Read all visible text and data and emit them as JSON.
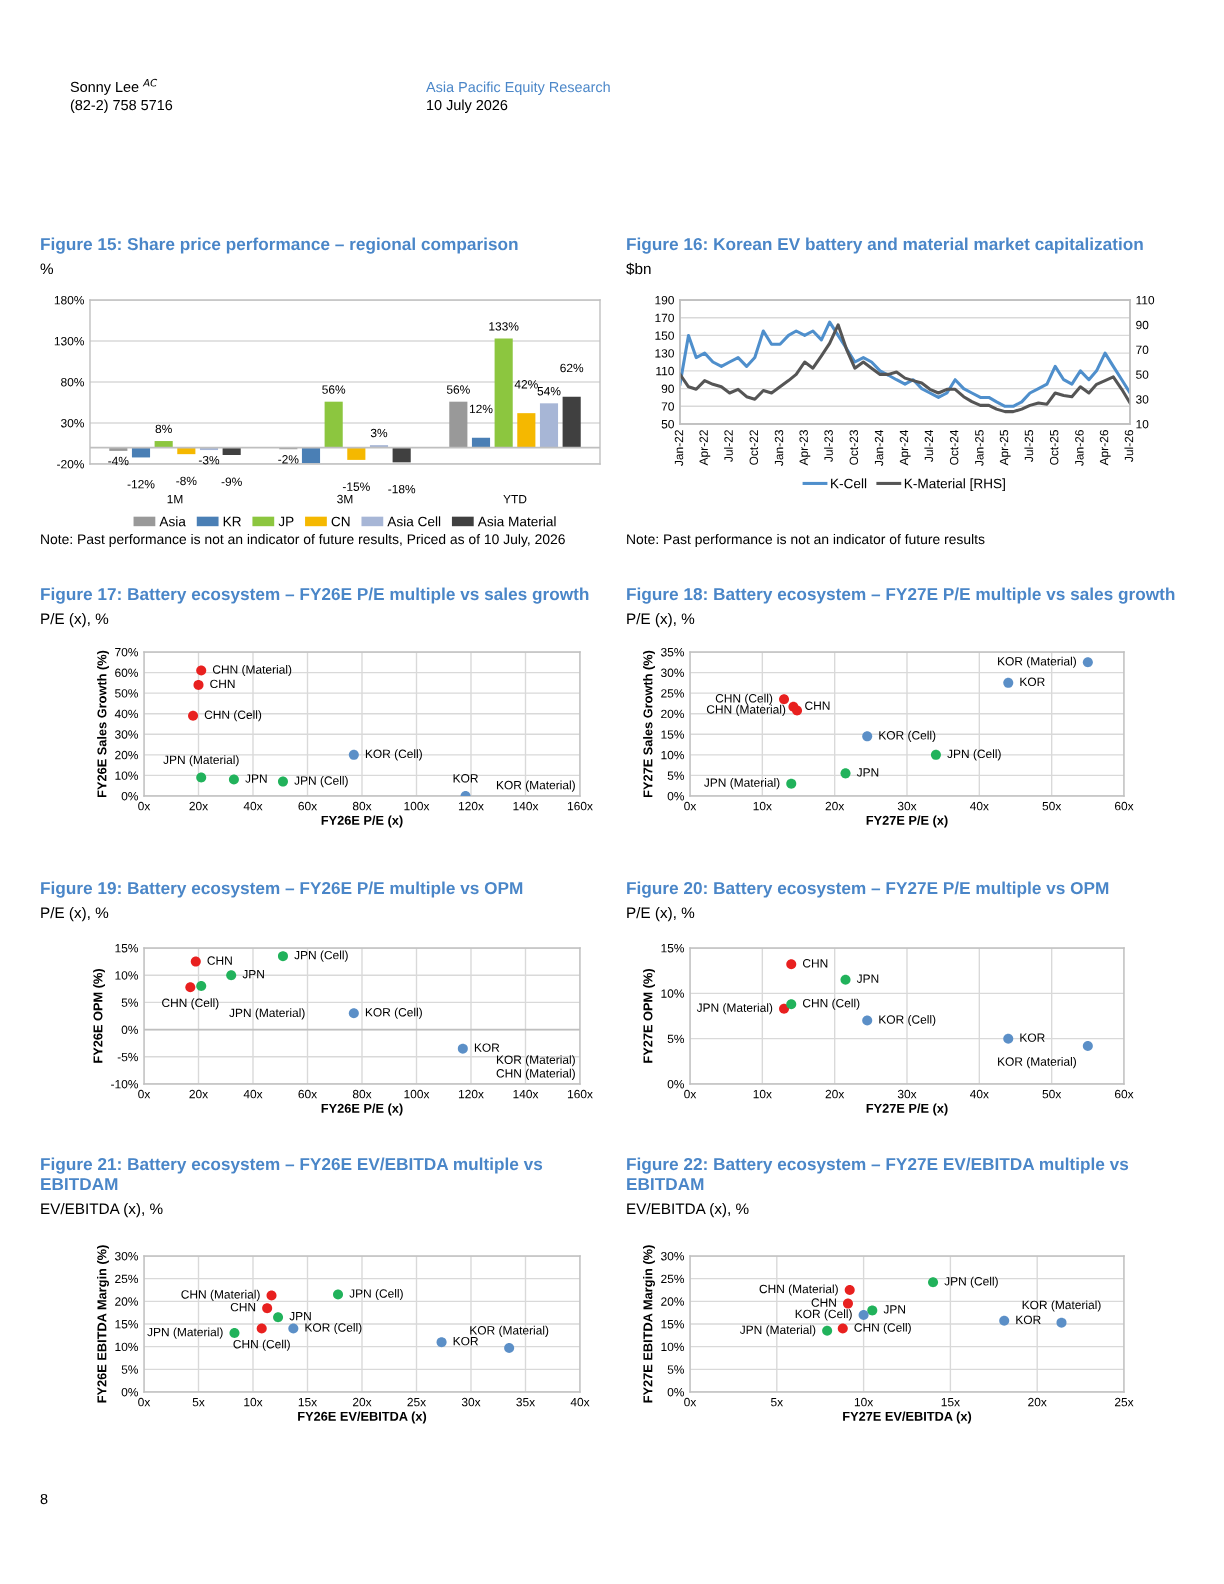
{
  "chart_data": [
    {
      "type": "other",
      "annotations": [
        "Sonny Lee $^{AC}$",
        "(82-2) 758 5716",
        "Asia Pacific Equity Research",
        "10 July 2026",
        "8"
      ]
    },
    {
      "type": "bar",
      "title": "Figure 15: Share price performance – regional comparison",
      "subtitle": "%",
      "categories": [
        "1M",
        "3M",
        "YTD"
      ],
      "series": [
        {
          "name": "Asia",
          "color": "#999999",
          "values": [
            -4,
            -2,
            56
          ],
          "value_labels": [
            "-4%",
            "-2%",
            "56%"
          ]
        },
        {
          "name": "KR",
          "color": "#4a7fb5",
          "values": [
            -12,
            -19,
            12
          ],
          "value_labels": [
            "-12%",
            null,
            "12%"
          ]
        },
        {
          "name": "JP",
          "color": "#8cc63f",
          "values": [
            8,
            56,
            133
          ],
          "value_labels": [
            "8%",
            "56%",
            "133%"
          ]
        },
        {
          "name": "CN",
          "color": "#f5b800",
          "values": [
            -8,
            -15,
            42
          ],
          "value_labels": [
            "-8%",
            "-15%",
            "42%"
          ]
        },
        {
          "name": "Asia Cell",
          "color": "#a7b6d6",
          "values": [
            -3,
            3,
            54
          ],
          "value_labels": [
            "-3%",
            "3%",
            "54%"
          ]
        },
        {
          "name": "Asia Material",
          "color": "#404040",
          "values": [
            -9,
            -18,
            62
          ],
          "value_labels": [
            "-9%",
            "-18%",
            "62%"
          ]
        }
      ],
      "ylim": [
        -20,
        180
      ],
      "yticks": [
        {
          "value": -20,
          "label": "-20%"
        },
        {
          "value": 30,
          "label": "30%"
        },
        {
          "value": 80,
          "label": "80%"
        },
        {
          "value": 130,
          "label": "130%"
        },
        {
          "value": 180,
          "label": "180%"
        }
      ],
      "grid": "y",
      "legend": "bottom",
      "annotations": [
        "Note: Past performance is not an indicator of future results, Priced as of 10 July, 2026"
      ]
    },
    {
      "type": "line",
      "title": "Figure 16: Korean EV battery and material market capitalization",
      "subtitle": "$bn",
      "x": [
        "2022-01",
        "2022-02",
        "2022-03",
        "2022-04",
        "2022-05",
        "2022-06",
        "2022-07",
        "2022-08",
        "2022-09",
        "2022-10",
        "2022-11",
        "2022-12",
        "2023-01",
        "2023-02",
        "2023-03",
        "2023-04",
        "2023-05",
        "2023-06",
        "2023-07",
        "2023-08",
        "2023-09",
        "2023-10",
        "2023-11",
        "2023-12",
        "2024-01",
        "2024-02",
        "2024-03",
        "2024-04",
        "2024-05",
        "2024-06",
        "2024-07",
        "2024-08",
        "2024-09",
        "2024-10",
        "2024-11",
        "2024-12",
        "2025-01",
        "2025-02",
        "2025-03",
        "2025-04",
        "2025-05",
        "2025-06",
        "2025-07",
        "2025-08",
        "2025-09",
        "2025-10",
        "2025-11",
        "2025-12",
        "2026-01",
        "2026-02",
        "2026-03",
        "2026-04",
        "2026-05",
        "2026-06",
        "2026-07"
      ],
      "series": [
        {
          "name": "K-Cell",
          "color": "#4f8fcc",
          "values": [
            95,
            150,
            125,
            130,
            120,
            115,
            120,
            125,
            115,
            125,
            155,
            140,
            140,
            150,
            155,
            150,
            155,
            145,
            165,
            150,
            135,
            120,
            125,
            120,
            110,
            105,
            100,
            95,
            100,
            90,
            85,
            80,
            85,
            100,
            90,
            85,
            80,
            80,
            75,
            70,
            70,
            75,
            85,
            90,
            95,
            115,
            100,
            95,
            110,
            100,
            110,
            130,
            115,
            100,
            85
          ]
        },
        {
          "name": "K-Material [RHS]",
          "color": "#555555",
          "axis": "y2",
          "values": [
            50,
            40,
            38,
            45,
            42,
            40,
            35,
            38,
            32,
            30,
            37,
            35,
            40,
            45,
            50,
            60,
            55,
            65,
            75,
            90,
            70,
            55,
            60,
            55,
            50,
            50,
            52,
            47,
            45,
            43,
            38,
            35,
            38,
            38,
            32,
            28,
            25,
            25,
            22,
            20,
            20,
            22,
            25,
            27,
            26,
            35,
            33,
            32,
            40,
            35,
            42,
            45,
            48,
            38,
            27
          ]
        }
      ],
      "xlim": [
        "2022-01",
        "2026-07"
      ],
      "xticks": [
        {
          "value": "2022-01",
          "label": "Jan-22"
        },
        {
          "value": "2022-04",
          "label": "Apr-22"
        },
        {
          "value": "2022-07",
          "label": "Jul-22"
        },
        {
          "value": "2022-10",
          "label": "Oct-22"
        },
        {
          "value": "2023-01",
          "label": "Jan-23"
        },
        {
          "value": "2023-04",
          "label": "Apr-23"
        },
        {
          "value": "2023-07",
          "label": "Jul-23"
        },
        {
          "value": "2023-10",
          "label": "Oct-23"
        },
        {
          "value": "2024-01",
          "label": "Jan-24"
        },
        {
          "value": "2024-04",
          "label": "Apr-24"
        },
        {
          "value": "2024-07",
          "label": "Jul-24"
        },
        {
          "value": "2024-10",
          "label": "Oct-24"
        },
        {
          "value": "2025-01",
          "label": "Jan-25"
        },
        {
          "value": "2025-04",
          "label": "Apr-25"
        },
        {
          "value": "2025-07",
          "label": "Jul-25"
        },
        {
          "value": "2025-10",
          "label": "Oct-25"
        },
        {
          "value": "2026-01",
          "label": "Jan-26"
        },
        {
          "value": "2026-04",
          "label": "Apr-26"
        },
        {
          "value": "2026-07",
          "label": "Jul-26"
        }
      ],
      "ylim": [
        50,
        190
      ],
      "yticks": [
        50,
        70,
        90,
        110,
        130,
        150,
        170,
        190
      ],
      "y2lim": [
        10,
        110
      ],
      "y2ticks": [
        10,
        30,
        50,
        70,
        90,
        110
      ],
      "grid": "y",
      "legend": "bottom",
      "annotations": [
        "Note: Past performance is not an indicator of future results"
      ]
    },
    {
      "type": "scatter",
      "title": "Figure 17: Battery ecosystem – FY26E P/E multiple vs sales growth",
      "subtitle": "P/E (x), %",
      "xlabel": "FY26E P/E (x)",
      "ylabel": "FY26E Sales Growth (%)",
      "x": [
        21,
        20,
        18,
        21,
        33,
        51,
        77,
        118
      ],
      "values": [
        61,
        54,
        39,
        9,
        8,
        7,
        20,
        0
      ],
      "colors": [
        "#e8201f",
        "#e8201f",
        "#e8201f",
        "#21b25b",
        "#21b25b",
        "#21b25b",
        "#5b8fc7",
        "#5b8fc7"
      ],
      "xlim": [
        0,
        160
      ],
      "xticks": [
        {
          "value": 0,
          "label": "0x"
        },
        {
          "value": 20,
          "label": "20x"
        },
        {
          "value": 40,
          "label": "40x"
        },
        {
          "value": 60,
          "label": "60x"
        },
        {
          "value": 80,
          "label": "80x"
        },
        {
          "value": 100,
          "label": "100x"
        },
        {
          "value": 120,
          "label": "120x"
        },
        {
          "value": 140,
          "label": "140x"
        },
        {
          "value": 160,
          "label": "160x"
        }
      ],
      "ylim": [
        0,
        70
      ],
      "yticks": [
        {
          "value": 0,
          "label": "0%"
        },
        {
          "value": 10,
          "label": "10%"
        },
        {
          "value": 20,
          "label": "20%"
        },
        {
          "value": 30,
          "label": "30%"
        },
        {
          "value": 40,
          "label": "40%"
        },
        {
          "value": 50,
          "label": "50%"
        },
        {
          "value": 60,
          "label": "60%"
        },
        {
          "value": 70,
          "label": "70%"
        }
      ],
      "grid": true,
      "marker": "circle",
      "annotations": [
        {
          "text": "CHN (Material)",
          "x": 21,
          "y": 61
        },
        {
          "text": "CHN",
          "x": 20,
          "y": 54
        },
        {
          "text": "CHN (Cell)",
          "x": 18,
          "y": 39
        },
        {
          "text": "JPN (Material)",
          "x": 21,
          "y": 9
        },
        {
          "text": "JPN",
          "x": 33,
          "y": 8
        },
        {
          "text": "JPN (Cell)",
          "x": 51,
          "y": 7
        },
        {
          "text": "KOR (Cell)",
          "x": 77,
          "y": 20
        },
        {
          "text": "KOR",
          "x": 118,
          "y": 0
        },
        "KOR (Material)"
      ]
    },
    {
      "type": "scatter",
      "title": "Figure 18: Battery ecosystem – FY27E P/E multiple vs sales growth",
      "subtitle": "P/E (x), %",
      "xlabel": "FY27E P/E (x)",
      "ylabel": "FY27E Sales Growth (%)",
      "x": [
        55,
        44,
        13,
        14.3,
        14.8,
        24.5,
        34,
        21.5,
        14
      ],
      "values": [
        32.5,
        27.5,
        23.5,
        21.7,
        20.8,
        14.5,
        10,
        5.5,
        3
      ],
      "colors": [
        "#5b8fc7",
        "#5b8fc7",
        "#e8201f",
        "#e8201f",
        "#e8201f",
        "#5b8fc7",
        "#21b25b",
        "#21b25b",
        "#21b25b"
      ],
      "xlim": [
        0,
        60
      ],
      "xticks": [
        {
          "value": 0,
          "label": "0x"
        },
        {
          "value": 10,
          "label": "10x"
        },
        {
          "value": 20,
          "label": "20x"
        },
        {
          "value": 30,
          "label": "30x"
        },
        {
          "value": 40,
          "label": "40x"
        },
        {
          "value": 50,
          "label": "50x"
        },
        {
          "value": 60,
          "label": "60x"
        }
      ],
      "ylim": [
        0,
        35
      ],
      "yticks": [
        {
          "value": 0,
          "label": "0%"
        },
        {
          "value": 5,
          "label": "5%"
        },
        {
          "value": 10,
          "label": "10%"
        },
        {
          "value": 15,
          "label": "15%"
        },
        {
          "value": 20,
          "label": "20%"
        },
        {
          "value": 25,
          "label": "25%"
        },
        {
          "value": 30,
          "label": "30%"
        },
        {
          "value": 35,
          "label": "35%"
        }
      ],
      "grid": true,
      "marker": "circle",
      "annotations": [
        {
          "text": "KOR (Material)",
          "x": 55,
          "y": 32.5
        },
        {
          "text": "KOR",
          "x": 44,
          "y": 27.5
        },
        {
          "text": "CHN (Cell)",
          "x": 13,
          "y": 23.5
        },
        {
          "text": "CHN",
          "x": 14.3,
          "y": 21.7
        },
        {
          "text": "CHN (Material)",
          "x": 14.8,
          "y": 20.8
        },
        {
          "text": "KOR (Cell)",
          "x": 24.5,
          "y": 14.5
        },
        {
          "text": "JPN (Cell)",
          "x": 34,
          "y": 10
        },
        {
          "text": "JPN",
          "x": 21.5,
          "y": 5.5
        },
        {
          "text": "JPN (Material)",
          "x": 14,
          "y": 3
        }
      ]
    },
    {
      "type": "scatter",
      "title": "Figure 19: Battery ecosystem – FY26E P/E multiple vs OPM",
      "subtitle": "P/E (x), %",
      "xlabel": "FY26E P/E (x)",
      "ylabel": "FY26E OPM (%)",
      "x": [
        19,
        51,
        32,
        17,
        21,
        77,
        117
      ],
      "values": [
        12.5,
        13.5,
        10,
        7.8,
        8,
        3,
        -3.5
      ],
      "colors": [
        "#e8201f",
        "#21b25b",
        "#21b25b",
        "#e8201f",
        "#21b25b",
        "#5b8fc7",
        "#5b8fc7"
      ],
      "xlim": [
        0,
        160
      ],
      "xticks": [
        {
          "value": 0,
          "label": "0x"
        },
        {
          "value": 20,
          "label": "20x"
        },
        {
          "value": 40,
          "label": "40x"
        },
        {
          "value": 60,
          "label": "60x"
        },
        {
          "value": 80,
          "label": "80x"
        },
        {
          "value": 100,
          "label": "100x"
        },
        {
          "value": 120,
          "label": "120x"
        },
        {
          "value": 140,
          "label": "140x"
        },
        {
          "value": 160,
          "label": "160x"
        }
      ],
      "ylim": [
        -10,
        15
      ],
      "yticks": [
        {
          "value": -10,
          "label": "-10%"
        },
        {
          "value": -5,
          "label": "-5%"
        },
        {
          "value": 0,
          "label": "0%"
        },
        {
          "value": 5,
          "label": "5%"
        },
        {
          "value": 10,
          "label": "10%"
        },
        {
          "value": 15,
          "label": "15%"
        }
      ],
      "grid": true,
      "marker": "circle",
      "annotations": [
        {
          "text": "CHN",
          "x": 19,
          "y": 12.5
        },
        {
          "text": "JPN (Cell)",
          "x": 51,
          "y": 13.5
        },
        {
          "text": "JPN",
          "x": 32,
          "y": 10
        },
        {
          "text": "CHN (Cell)",
          "x": 17,
          "y": 7.8
        },
        {
          "text": "JPN (Material)",
          "x": 21,
          "y": 8
        },
        {
          "text": "KOR (Cell)",
          "x": 77,
          "y": 3
        },
        {
          "text": "KOR",
          "x": 117,
          "y": -3.5
        },
        "CHN (Material)",
        "KOR (Material)"
      ]
    },
    {
      "type": "scatter",
      "title": "Figure 20: Battery ecosystem – FY27E P/E multiple vs OPM",
      "subtitle": "P/E (x), %",
      "xlabel": "FY27E P/E (x)",
      "ylabel": "FY27E OPM (%)",
      "x": [
        14,
        21.5,
        13,
        14,
        24.5,
        44,
        55
      ],
      "values": [
        13.2,
        11.5,
        8.3,
        8.8,
        7,
        5,
        4.2
      ],
      "colors": [
        "#e8201f",
        "#21b25b",
        "#e8201f",
        "#21b25b",
        "#5b8fc7",
        "#5b8fc7",
        "#5b8fc7"
      ],
      "xlim": [
        0,
        60
      ],
      "xticks": [
        {
          "value": 0,
          "label": "0x"
        },
        {
          "value": 10,
          "label": "10x"
        },
        {
          "value": 20,
          "label": "20x"
        },
        {
          "value": 30,
          "label": "30x"
        },
        {
          "value": 40,
          "label": "40x"
        },
        {
          "value": 50,
          "label": "50x"
        },
        {
          "value": 60,
          "label": "60x"
        }
      ],
      "ylim": [
        0,
        15
      ],
      "yticks": [
        {
          "value": 0,
          "label": "0%"
        },
        {
          "value": 5,
          "label": "5%"
        },
        {
          "value": 10,
          "label": "10%"
        },
        {
          "value": 15,
          "label": "15%"
        }
      ],
      "grid": true,
      "marker": "circle",
      "annotations": [
        {
          "text": "CHN",
          "x": 14,
          "y": 13.2
        },
        {
          "text": "JPN",
          "x": 21.5,
          "y": 11.5
        },
        {
          "text": "JPN (Material)",
          "x": 13,
          "y": 8.3
        },
        {
          "text": "CHN (Cell)",
          "x": 14,
          "y": 8.8
        },
        {
          "text": "KOR (Cell)",
          "x": 24.5,
          "y": 7
        },
        {
          "text": "KOR",
          "x": 44,
          "y": 5
        },
        {
          "text": "KOR (Material)",
          "x": 55,
          "y": 4.2
        }
      ]
    },
    {
      "type": "scatter",
      "title": "Figure 21: Battery ecosystem – FY26E EV/EBITDA multiple vs EBITDAM",
      "subtitle": "EV/EBITDA (x), %",
      "xlabel": "FY26E EV/EBITDA (x)",
      "ylabel": "FY26E EBITDA Margin (%)",
      "x": [
        13.7,
        11.7,
        17.8,
        11.3,
        12.3,
        10.8,
        8.3,
        27.3,
        33.5
      ],
      "values": [
        14,
        21.3,
        21.5,
        18.5,
        16.5,
        14,
        13,
        11,
        9.7
      ],
      "colors": [
        "#5b8fc7",
        "#e8201f",
        "#21b25b",
        "#e8201f",
        "#21b25b",
        "#e8201f",
        "#21b25b",
        "#5b8fc7",
        "#5b8fc7"
      ],
      "xlim": [
        0,
        40
      ],
      "xticks": [
        {
          "value": 0,
          "label": "0x"
        },
        {
          "value": 5,
          "label": "5x"
        },
        {
          "value": 10,
          "label": "10x"
        },
        {
          "value": 15,
          "label": "15x"
        },
        {
          "value": 20,
          "label": "20x"
        },
        {
          "value": 25,
          "label": "25x"
        },
        {
          "value": 30,
          "label": "30x"
        },
        {
          "value": 35,
          "label": "35x"
        },
        {
          "value": 40,
          "label": "40x"
        }
      ],
      "ylim": [
        0,
        30
      ],
      "yticks": [
        {
          "value": 0,
          "label": "0%"
        },
        {
          "value": 5,
          "label": "5%"
        },
        {
          "value": 10,
          "label": "10%"
        },
        {
          "value": 15,
          "label": "15%"
        },
        {
          "value": 20,
          "label": "20%"
        },
        {
          "value": 25,
          "label": "25%"
        },
        {
          "value": 30,
          "label": "30%"
        }
      ],
      "grid": true,
      "marker": "circle",
      "annotations": [
        {
          "text": "KOR (Cell)",
          "x": 13.7,
          "y": 14
        },
        {
          "text": "CHN (Material)",
          "x": 11.7,
          "y": 21.3
        },
        {
          "text": "JPN (Cell)",
          "x": 17.8,
          "y": 21.5
        },
        {
          "text": "CHN",
          "x": 11.3,
          "y": 18.5
        },
        {
          "text": "JPN",
          "x": 12.3,
          "y": 16.5
        },
        {
          "text": "CHN (Cell)",
          "x": 10.8,
          "y": 14
        },
        {
          "text": "JPN (Material)",
          "x": 8.3,
          "y": 13
        },
        {
          "text": "KOR",
          "x": 27.3,
          "y": 11
        },
        {
          "text": "KOR (Material)",
          "x": 33.5,
          "y": 9.7
        }
      ]
    },
    {
      "type": "scatter",
      "title": "Figure 22: Battery ecosystem – FY27E EV/EBITDA multiple vs EBITDAM",
      "subtitle": "EV/EBITDA (x), %",
      "xlabel": "FY27E EV/EBITDA (x)",
      "ylabel": "FY27E EBITDA Margin (%)",
      "x": [
        9.2,
        14,
        9.1,
        10.5,
        8.8,
        10,
        7.9,
        18.1,
        21.4
      ],
      "values": [
        22.5,
        24.2,
        19.5,
        18,
        14,
        17,
        13.5,
        15.7,
        15.3
      ],
      "colors": [
        "#e8201f",
        "#21b25b",
        "#e8201f",
        "#21b25b",
        "#e8201f",
        "#5b8fc7",
        "#21b25b",
        "#5b8fc7",
        "#5b8fc7"
      ],
      "xlim": [
        0,
        25
      ],
      "xticks": [
        {
          "value": 0,
          "label": "0x"
        },
        {
          "value": 5,
          "label": "5x"
        },
        {
          "value": 10,
          "label": "10x"
        },
        {
          "value": 15,
          "label": "15x"
        },
        {
          "value": 20,
          "label": "20x"
        },
        {
          "value": 25,
          "label": "25x"
        }
      ],
      "ylim": [
        0,
        30
      ],
      "yticks": [
        {
          "value": 0,
          "label": "0%"
        },
        {
          "value": 5,
          "label": "5%"
        },
        {
          "value": 10,
          "label": "10%"
        },
        {
          "value": 15,
          "label": "15%"
        },
        {
          "value": 20,
          "label": "20%"
        },
        {
          "value": 25,
          "label": "25%"
        },
        {
          "value": 30,
          "label": "30%"
        }
      ],
      "grid": true,
      "marker": "circle",
      "annotations": [
        {
          "text": "CHN (Material)",
          "x": 9.2,
          "y": 22.5
        },
        {
          "text": "JPN (Cell)",
          "x": 14,
          "y": 24.2
        },
        {
          "text": "CHN",
          "x": 9.1,
          "y": 19.5
        },
        {
          "text": "JPN",
          "x": 10.5,
          "y": 18
        },
        {
          "text": "CHN (Cell)",
          "x": 8.8,
          "y": 14
        },
        {
          "text": "KOR (Cell)",
          "x": 10,
          "y": 17
        },
        {
          "text": "JPN (Material)",
          "x": 7.9,
          "y": 13.5
        },
        {
          "text": "KOR",
          "x": 18.1,
          "y": 15.7
        },
        {
          "text": "KOR (Material)",
          "x": 21.4,
          "y": 15.3
        }
      ]
    }
  ]
}
